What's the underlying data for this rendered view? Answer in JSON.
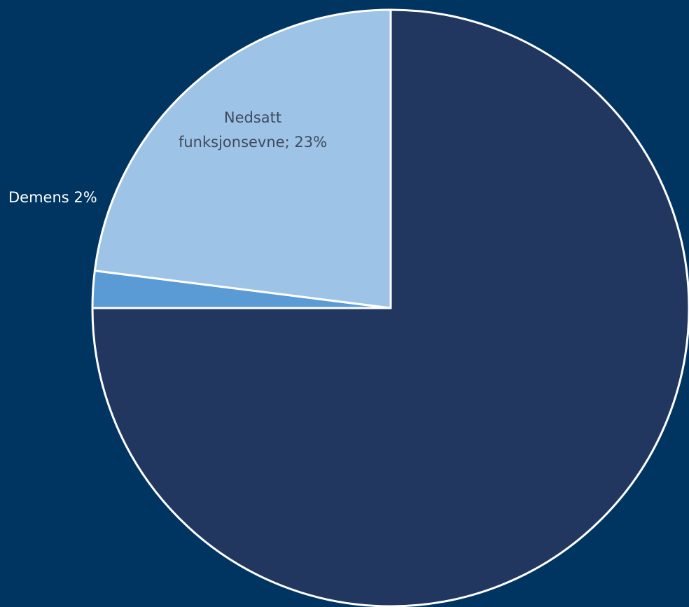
{
  "colors": {
    "background": "#003562",
    "border": "#ffffff"
  },
  "chart_data": {
    "type": "pie",
    "title": "",
    "legend": "none",
    "slices": [
      {
        "name": "",
        "value": 75,
        "color": "#22375f",
        "label_line1": "",
        "label_line2": ""
      },
      {
        "name": "Demens",
        "value": 2,
        "color": "#5b9bd5",
        "label_line1": "Demens 2%",
        "label_line2": ""
      },
      {
        "name": "Nedsatt funksjonsevne",
        "value": 23,
        "color": "#9dc3e6",
        "label_line1": "Nedsatt",
        "label_line2": "funksjonsevne; 23%"
      }
    ]
  }
}
